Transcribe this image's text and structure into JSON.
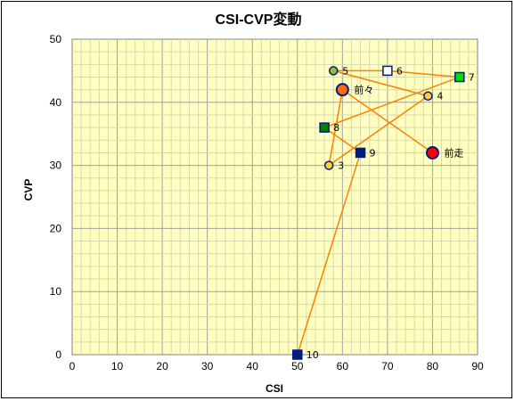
{
  "chart_data": {
    "type": "scatter",
    "title": "CSI-CVP変動",
    "xlabel": "CSI",
    "ylabel": "CVP",
    "xlim": [
      0,
      90
    ],
    "ylim": [
      0,
      50
    ],
    "x_ticks": [
      "0",
      "10",
      "20",
      "30",
      "40",
      "50",
      "60",
      "70",
      "80",
      "90"
    ],
    "y_ticks": [
      "0",
      "10",
      "20",
      "30",
      "40",
      "50"
    ],
    "grid": true,
    "line_color": "#ff8000",
    "plot_background": "#ffffc0",
    "points": [
      {
        "label": "10",
        "x": 50,
        "y": 0,
        "shape": "square",
        "fill": "#001a80",
        "stroke": "#001a80"
      },
      {
        "label": "9",
        "x": 64,
        "y": 32,
        "shape": "square",
        "fill": "#001a80",
        "stroke": "#001a80"
      },
      {
        "label": "8",
        "x": 56,
        "y": 36,
        "shape": "square",
        "fill": "#008000",
        "stroke": "#001a80"
      },
      {
        "label": "7",
        "x": 86,
        "y": 44,
        "shape": "square",
        "fill": "#00e000",
        "stroke": "#001a80"
      },
      {
        "label": "6",
        "x": 70,
        "y": 45,
        "shape": "square",
        "fill": "#ffffff",
        "stroke": "#001a80"
      },
      {
        "label": "5",
        "x": 58,
        "y": 45,
        "shape": "circle",
        "fill": "#90c030",
        "stroke": "#001a80"
      },
      {
        "label": "4",
        "x": 79,
        "y": 41,
        "shape": "circle",
        "fill": "#ffd040",
        "stroke": "#001a80"
      },
      {
        "label": "3",
        "x": 57,
        "y": 30,
        "shape": "circle",
        "fill": "#ffd040",
        "stroke": "#001a80"
      },
      {
        "label": "前々",
        "x": 60,
        "y": 42,
        "shape": "circle-large",
        "fill": "#ff6a00",
        "stroke": "#001a80"
      },
      {
        "label": "前走",
        "x": 80,
        "y": 32,
        "shape": "circle-large",
        "fill": "#ff0000",
        "stroke": "#001a80"
      }
    ],
    "path_order": [
      "10",
      "9",
      "8",
      "7",
      "6",
      "5",
      "4",
      "3",
      "前々",
      "前走"
    ]
  }
}
